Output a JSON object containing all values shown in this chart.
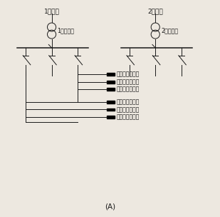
{
  "title": "(A)",
  "bg_color": "#ede8e0",
  "line_color": "#1a1a1a",
  "label1_header": "1号进线",
  "label2_header": "2号进线",
  "trans1_label": "1号变压器",
  "trans2_label": "2号变压器",
  "load_label": "手术室一般照明",
  "font_size_header": 6.5,
  "font_size_trans": 5.8,
  "font_size_load": 5.5,
  "font_size_title": 7.5,
  "lw": 0.7,
  "lw_bus": 1.1
}
